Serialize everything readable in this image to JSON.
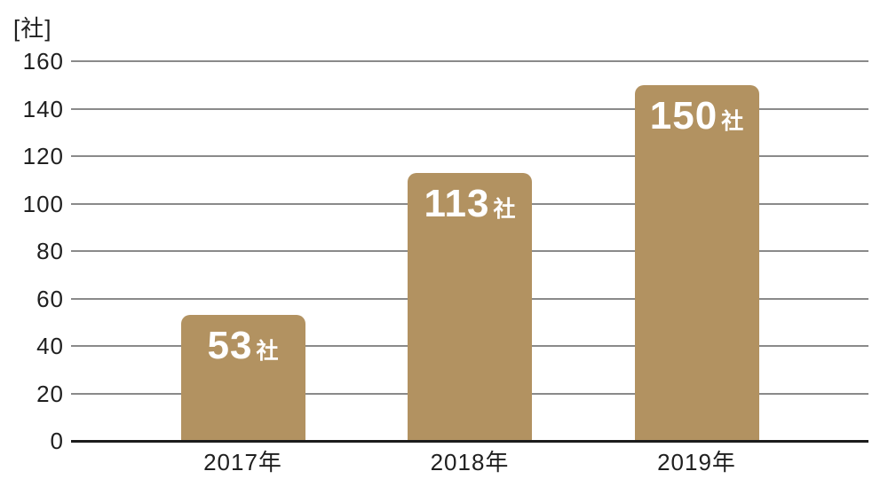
{
  "chart_data": {
    "type": "bar",
    "title": "",
    "unit_label": "[社]",
    "categories": [
      "2017年",
      "2018年",
      "2019年"
    ],
    "values": [
      53,
      113,
      150
    ],
    "value_suffix": "社",
    "yticks": [
      0,
      20,
      40,
      60,
      80,
      100,
      120,
      140,
      160
    ],
    "ylim": [
      0,
      160
    ],
    "grid": true,
    "legend": "none",
    "colors": {
      "bar": "#b29261",
      "bar_label_text": "#ffffff",
      "axis_text": "#1f1f1f",
      "gridline": "#8a8a8a",
      "baseline": "#1c1c1c",
      "background": "#ffffff"
    }
  }
}
